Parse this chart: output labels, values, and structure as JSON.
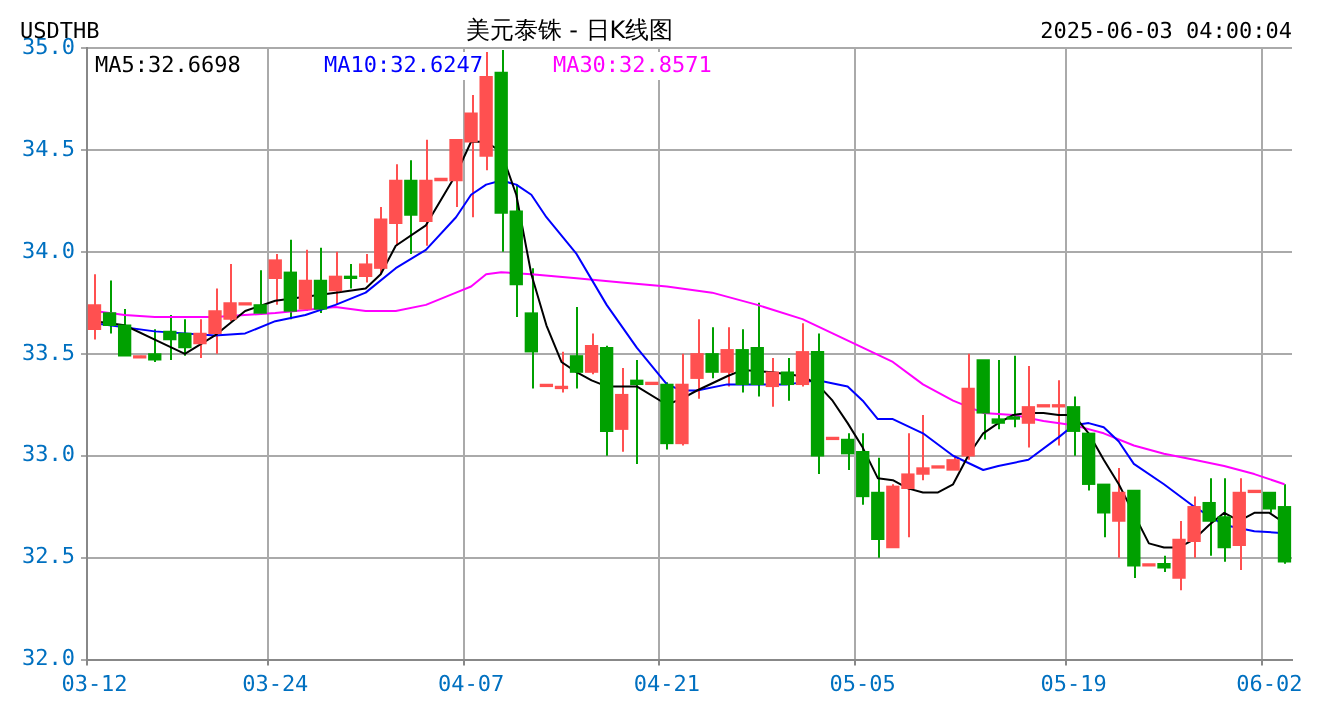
{
  "chart_data": {
    "type": "candlestick",
    "title": "美元泰铢 - 日K线图",
    "subtitle": "USDTHB",
    "annotations": [
      "2025-06-03 04:00:04"
    ],
    "categories": [
      "03-12",
      null,
      null,
      null,
      null,
      null,
      null,
      null,
      null,
      null,
      null,
      null,
      "03-24",
      null,
      null,
      null,
      null,
      null,
      null,
      null,
      null,
      null,
      null,
      null,
      null,
      "04-07",
      null,
      null,
      null,
      null,
      null,
      null,
      null,
      null,
      null,
      null,
      null,
      null,
      "04-21",
      null,
      null,
      null,
      null,
      null,
      null,
      null,
      null,
      null,
      null,
      null,
      null,
      "05-05",
      null,
      null,
      null,
      null,
      null,
      null,
      null,
      null,
      null,
      null,
      null,
      null,
      null,
      "05-19",
      null,
      null,
      null,
      null,
      null,
      null,
      null,
      null,
      null,
      null,
      null,
      null,
      "06-02",
      null
    ],
    "ohlc": [
      [
        33.62,
        33.89,
        33.57,
        33.74
      ],
      [
        33.7,
        33.86,
        33.6,
        33.64
      ],
      [
        33.64,
        33.72,
        33.49,
        33.49
      ],
      [
        33.48,
        33.49,
        33.48,
        33.49
      ],
      [
        33.5,
        33.62,
        33.46,
        33.47
      ],
      [
        33.61,
        33.69,
        33.47,
        33.57
      ],
      [
        33.6,
        33.67,
        33.49,
        33.53
      ],
      [
        33.55,
        33.67,
        33.48,
        33.6
      ],
      [
        33.6,
        33.82,
        33.5,
        33.71
      ],
      [
        33.67,
        33.94,
        33.66,
        33.75
      ],
      [
        33.74,
        33.74,
        33.74,
        33.74
      ],
      [
        33.74,
        33.91,
        33.69,
        33.7
      ],
      [
        33.87,
        33.99,
        33.74,
        33.96
      ],
      [
        33.9,
        34.06,
        33.67,
        33.71
      ],
      [
        33.72,
        34.01,
        33.71,
        33.86
      ],
      [
        33.86,
        34.02,
        33.7,
        33.72
      ],
      [
        33.81,
        34.0,
        33.74,
        33.88
      ],
      [
        33.88,
        33.94,
        33.82,
        33.87
      ],
      [
        33.88,
        33.99,
        33.85,
        33.94
      ],
      [
        33.92,
        34.22,
        33.89,
        34.16
      ],
      [
        34.14,
        34.43,
        34.03,
        34.35
      ],
      [
        34.35,
        34.45,
        33.99,
        34.18
      ],
      [
        34.15,
        34.55,
        34.03,
        34.35
      ],
      [
        34.35,
        34.35,
        34.35,
        34.35
      ],
      [
        34.35,
        34.55,
        34.22,
        34.55
      ],
      [
        34.54,
        34.77,
        34.17,
        34.68
      ],
      [
        34.47,
        34.98,
        34.4,
        34.86
      ],
      [
        34.88,
        34.99,
        34.0,
        34.19
      ],
      [
        34.2,
        34.33,
        33.68,
        33.84
      ],
      [
        33.7,
        33.92,
        33.33,
        33.51
      ],
      [
        33.34,
        33.34,
        33.34,
        33.34
      ],
      [
        33.33,
        33.51,
        33.31,
        33.34
      ],
      [
        33.49,
        33.73,
        33.33,
        33.41
      ],
      [
        33.41,
        33.6,
        33.4,
        33.54
      ],
      [
        33.53,
        33.54,
        33.0,
        33.12
      ],
      [
        33.13,
        33.43,
        33.02,
        33.3
      ],
      [
        33.37,
        33.47,
        32.96,
        33.35
      ],
      [
        33.35,
        33.35,
        33.35,
        33.35
      ],
      [
        33.35,
        33.36,
        33.03,
        33.06
      ],
      [
        33.06,
        33.5,
        33.05,
        33.35
      ],
      [
        33.38,
        33.67,
        33.28,
        33.5
      ],
      [
        33.5,
        33.63,
        33.38,
        33.41
      ],
      [
        33.41,
        33.63,
        33.34,
        33.52
      ],
      [
        33.52,
        33.62,
        33.31,
        33.35
      ],
      [
        33.53,
        33.75,
        33.29,
        33.35
      ],
      [
        33.34,
        33.48,
        33.24,
        33.41
      ],
      [
        33.41,
        33.48,
        33.27,
        33.35
      ],
      [
        33.35,
        33.65,
        33.34,
        33.51
      ],
      [
        33.51,
        33.6,
        32.91,
        33.0
      ],
      [
        33.08,
        33.08,
        33.08,
        33.08
      ],
      [
        33.08,
        33.11,
        32.93,
        33.01
      ],
      [
        33.02,
        33.11,
        32.76,
        32.8
      ],
      [
        32.82,
        32.99,
        32.5,
        32.59
      ],
      [
        32.55,
        32.86,
        32.55,
        32.85
      ],
      [
        32.84,
        33.11,
        32.6,
        32.91
      ],
      [
        32.91,
        33.2,
        32.88,
        32.94
      ],
      [
        32.94,
        32.94,
        32.94,
        32.94
      ],
      [
        32.93,
        33.0,
        32.93,
        32.98
      ],
      [
        33.0,
        33.5,
        32.98,
        33.33
      ],
      [
        33.47,
        33.47,
        33.08,
        33.21
      ],
      [
        33.18,
        33.47,
        33.13,
        33.16
      ],
      [
        33.19,
        33.49,
        33.14,
        33.18
      ],
      [
        33.16,
        33.44,
        33.04,
        33.24
      ],
      [
        33.24,
        33.24,
        33.24,
        33.24
      ],
      [
        33.24,
        33.37,
        33.05,
        33.24
      ],
      [
        33.24,
        33.29,
        33.0,
        33.12
      ],
      [
        33.11,
        33.11,
        32.83,
        32.86
      ],
      [
        32.86,
        32.86,
        32.6,
        32.72
      ],
      [
        32.68,
        32.94,
        32.5,
        32.82
      ],
      [
        32.83,
        32.83,
        32.4,
        32.46
      ],
      [
        32.46,
        32.46,
        32.46,
        32.46
      ],
      [
        32.47,
        32.51,
        32.43,
        32.45
      ],
      [
        32.4,
        32.68,
        32.34,
        32.59
      ],
      [
        32.58,
        32.8,
        32.5,
        32.75
      ],
      [
        32.77,
        32.89,
        32.51,
        32.68
      ],
      [
        32.7,
        32.89,
        32.48,
        32.55
      ],
      [
        32.56,
        32.89,
        32.44,
        32.82
      ],
      [
        32.82,
        32.82,
        32.82,
        32.82
      ],
      [
        32.82,
        32.82,
        32.72,
        32.74
      ],
      [
        32.75,
        32.86,
        32.47,
        32.48
      ]
    ],
    "colors": [
      "#ff5050",
      "#00a000",
      "#00a000",
      "#ff5050",
      "#00a000",
      "#00a000",
      "#00a000",
      "#ff5050",
      "#ff5050",
      "#ff5050",
      "#ff5050",
      "#00a000",
      "#ff5050",
      "#00a000",
      "#ff5050",
      "#00a000",
      "#ff5050",
      "#00a000",
      "#ff5050",
      "#ff5050",
      "#ff5050",
      "#00a000",
      "#ff5050",
      "#ff5050",
      "#ff5050",
      "#ff5050",
      "#ff5050",
      "#00a000",
      "#00a000",
      "#00a000",
      "#ff5050",
      "#ff5050",
      "#00a000",
      "#ff5050",
      "#00a000",
      "#ff5050",
      "#00a000",
      "#ff5050",
      "#00a000",
      "#ff5050",
      "#ff5050",
      "#00a000",
      "#ff5050",
      "#00a000",
      "#00a000",
      "#ff5050",
      "#00a000",
      "#ff5050",
      "#00a000",
      "#ff5050",
      "#00a000",
      "#00a000",
      "#00a000",
      "#ff5050",
      "#ff5050",
      "#ff5050",
      "#ff5050",
      "#ff5050",
      "#ff5050",
      "#00a000",
      "#00a000",
      "#00a000",
      "#ff5050",
      "#ff5050",
      "#ff5050",
      "#00a000",
      "#00a000",
      "#00a000",
      "#ff5050",
      "#00a000",
      "#ff5050",
      "#00a000",
      "#ff5050",
      "#ff5050",
      "#00a000",
      "#00a000",
      "#ff5050",
      "#ff5050",
      "#00a000",
      "#00a000"
    ],
    "series": [
      {
        "type": "line",
        "name": "MA5:32.6698",
        "color": "#000000",
        "values": [
          33.66,
          null,
          33.64,
          null,
          33.57,
          null,
          33.5,
          null,
          33.59,
          null,
          33.71,
          null,
          33.76,
          null,
          33.78,
          null,
          33.8,
          null,
          33.82,
          33.89,
          34.03,
          null,
          34.13,
          null,
          34.38,
          34.54,
          34.54,
          34.49,
          34.28,
          33.89,
          33.64,
          33.46,
          33.41,
          33.37,
          33.34,
          null,
          33.34,
          null,
          33.25,
          33.28,
          33.32,
          null,
          33.39,
          33.42,
          null,
          33.41,
          null,
          33.39,
          33.35,
          33.27,
          33.16,
          33.04,
          32.89,
          32.88,
          32.84,
          32.82,
          32.82,
          32.86,
          33.0,
          33.11,
          33.16,
          33.2,
          33.21,
          33.21,
          33.2,
          33.2,
          33.11,
          32.98,
          32.86,
          null,
          32.57,
          32.55,
          32.55,
          32.59,
          32.66,
          32.72,
          32.68,
          32.72,
          32.72,
          32.67
        ]
      },
      {
        "type": "line",
        "name": "MA10:32.6247",
        "color": "#0000ff",
        "values": [
          33.65,
          null,
          null,
          null,
          33.61,
          null,
          null,
          null,
          33.59,
          null,
          33.6,
          null,
          33.66,
          null,
          33.69,
          null,
          33.74,
          null,
          33.8,
          null,
          33.92,
          null,
          34.01,
          null,
          34.17,
          34.28,
          34.33,
          34.35,
          34.33,
          34.28,
          34.17,
          null,
          33.99,
          null,
          33.74,
          null,
          33.53,
          null,
          33.35,
          33.32,
          33.32,
          null,
          33.35,
          null,
          33.35,
          null,
          33.35,
          null,
          33.37,
          null,
          33.34,
          33.27,
          33.18,
          33.18,
          null,
          33.11,
          null,
          33.0,
          null,
          32.93,
          32.95,
          null,
          32.98,
          null,
          33.09,
          33.15,
          33.16,
          33.14,
          33.07,
          32.96,
          null,
          32.86,
          null,
          32.75,
          null,
          32.66,
          null,
          32.63,
          null,
          32.62
        ]
      },
      {
        "type": "line",
        "name": "MA30:32.8571",
        "color": "#ff00ff",
        "values": [
          33.71,
          null,
          33.69,
          null,
          33.68,
          null,
          null,
          null,
          33.68,
          null,
          null,
          null,
          33.7,
          null,
          null,
          null,
          33.73,
          null,
          33.71,
          null,
          33.71,
          null,
          33.74,
          null,
          33.8,
          33.83,
          33.89,
          33.9,
          null,
          33.89,
          null,
          null,
          33.87,
          null,
          null,
          33.85,
          null,
          null,
          33.83,
          null,
          null,
          33.8,
          null,
          null,
          33.74,
          null,
          null,
          33.67,
          null,
          33.6,
          null,
          33.53,
          null,
          33.46,
          null,
          33.35,
          null,
          33.27,
          null,
          33.21,
          null,
          33.2,
          null,
          33.17,
          null,
          33.15,
          null,
          33.11,
          null,
          33.05,
          null,
          33.01,
          null,
          32.98,
          null,
          32.95,
          null,
          32.91,
          null,
          32.86
        ]
      }
    ],
    "ylim": [
      32.0,
      35.0
    ],
    "yticks": [
      {
        "value": 32.0,
        "label": "32.0"
      },
      {
        "value": 32.5,
        "label": "32.5"
      },
      {
        "value": 33.0,
        "label": "33.0"
      },
      {
        "value": 33.5,
        "label": "33.5"
      },
      {
        "value": 34.0,
        "label": "34.0"
      },
      {
        "value": 34.5,
        "label": "34.5"
      },
      {
        "value": 35.0,
        "label": "35.0"
      }
    ],
    "grid": true,
    "legend": "top",
    "marker": "none",
    "line_style": "solid"
  }
}
